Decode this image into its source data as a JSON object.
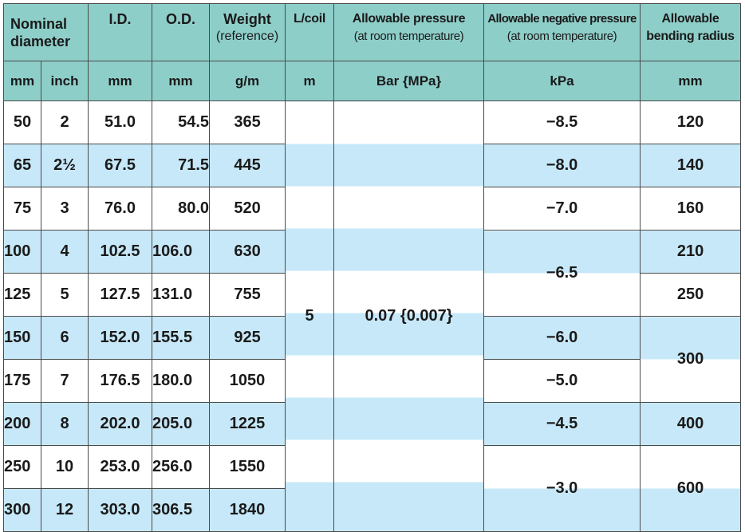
{
  "header": {
    "nominal_diameter": "Nominal diameter",
    "id": "I.D.",
    "od": "O.D.",
    "weight": "Weight",
    "weight_sub": "(reference)",
    "length": "L/coil",
    "allowable_pressure": "Allowable pressure",
    "allowable_pressure_sub": "(at room temperature)",
    "negative_pressure": "Allowable negative pressure",
    "negative_pressure_sub": "(at room temperature)",
    "bending_radius": "Allowable bending radius"
  },
  "units": {
    "nd_mm": "mm",
    "nd_inch": "inch",
    "id": "mm",
    "od": "mm",
    "weight": "g/m",
    "length": "m",
    "pressure": "Bar {MPa}",
    "negative": "kPa",
    "bending": "mm"
  },
  "rows": [
    {
      "mm": "50",
      "inch": "2",
      "id": "51.0",
      "od": "54.5",
      "weight": "365"
    },
    {
      "mm": "65",
      "inch": "2½",
      "id": "67.5",
      "od": "71.5",
      "weight": "445"
    },
    {
      "mm": "75",
      "inch": "3",
      "id": "76.0",
      "od": "80.0",
      "weight": "520"
    },
    {
      "mm": "100",
      "inch": "4",
      "id": "102.5",
      "od": "106.0",
      "weight": "630"
    },
    {
      "mm": "125",
      "inch": "5",
      "id": "127.5",
      "od": "131.0",
      "weight": "755"
    },
    {
      "mm": "150",
      "inch": "6",
      "id": "152.0",
      "od": "155.5",
      "weight": "925"
    },
    {
      "mm": "175",
      "inch": "7",
      "id": "176.5",
      "od": "180.0",
      "weight": "1050"
    },
    {
      "mm": "200",
      "inch": "8",
      "id": "202.0",
      "od": "205.0",
      "weight": "1225"
    },
    {
      "mm": "250",
      "inch": "10",
      "id": "253.0",
      "od": "256.0",
      "weight": "1550"
    },
    {
      "mm": "300",
      "inch": "12",
      "id": "303.0",
      "od": "306.5",
      "weight": "1840"
    }
  ],
  "merged": {
    "length": "5",
    "pressure": "0.07 {0.007}",
    "negative": [
      "−8.5",
      "−8.0",
      "−7.0",
      "−6.5",
      "−6.0",
      "−5.0",
      "−4.5",
      "−3.0"
    ],
    "bending": [
      "120",
      "140",
      "160",
      "210",
      "250",
      "300",
      "400",
      "600"
    ]
  }
}
